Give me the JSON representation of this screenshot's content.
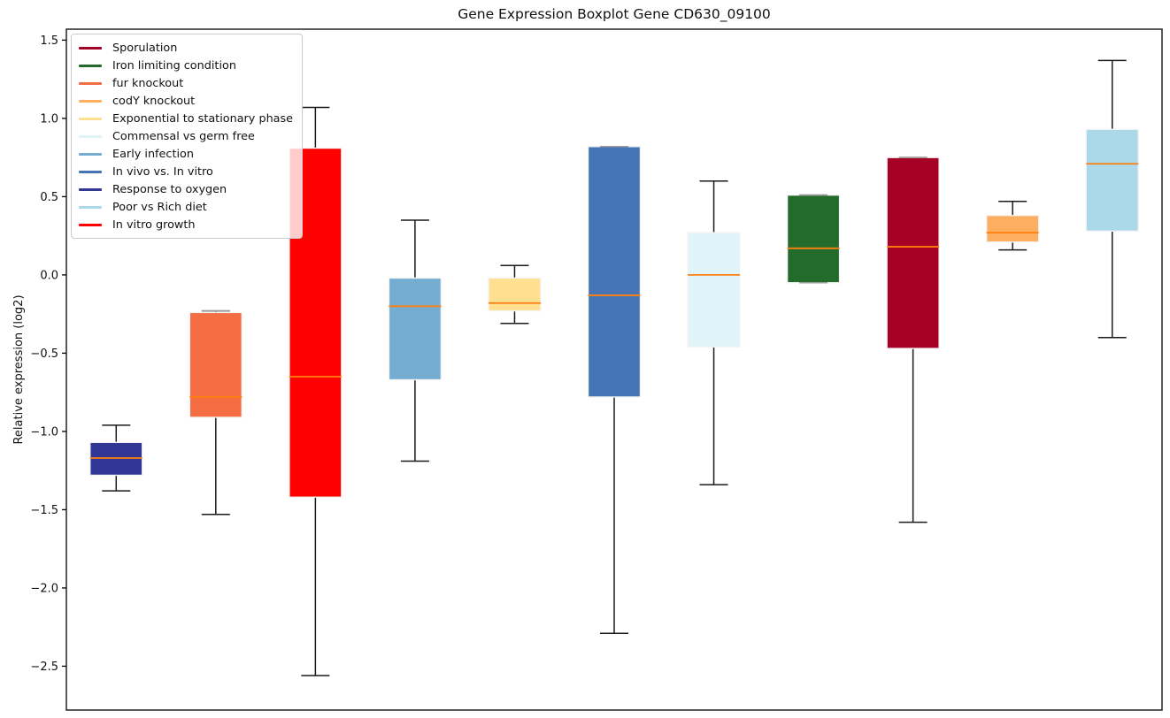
{
  "chart_data": {
    "type": "boxplot",
    "title": "Gene Expression Boxplot Gene CD630_09100",
    "ylabel": "Relative expression (log2)",
    "xlabel": "",
    "ylim": [
      -2.78,
      1.57
    ],
    "yticks": [
      1.5,
      1.0,
      0.5,
      0.0,
      -0.5,
      -1.0,
      -1.5,
      -2.0,
      -2.5
    ],
    "grid": false,
    "legend_position": "upper-left",
    "median_color": "#FF7F0E",
    "whisker_color": "#1a1a1a",
    "box_edge_color": "#f4f4f4",
    "series": [
      {
        "name": "Response to oxygen",
        "color": "#313695",
        "whisker_low": -1.38,
        "q1": -1.28,
        "median": -1.17,
        "q3": -1.07,
        "whisker_high": -0.96
      },
      {
        "name": "fur knockout",
        "color": "#F46D43",
        "whisker_low": -1.53,
        "q1": -0.91,
        "median": -0.78,
        "q3": -0.24,
        "whisker_high": -0.23
      },
      {
        "name": "In vitro growth",
        "color": "#FF0000",
        "whisker_low": -2.56,
        "q1": -1.42,
        "median": -0.65,
        "q3": 0.81,
        "whisker_high": 1.07
      },
      {
        "name": "Early infection",
        "color": "#74ADD1",
        "whisker_low": -1.19,
        "q1": -0.67,
        "median": -0.2,
        "q3": -0.02,
        "whisker_high": 0.35
      },
      {
        "name": "Exponential to stationary phase",
        "color": "#FEE090",
        "whisker_low": -0.31,
        "q1": -0.23,
        "median": -0.18,
        "q3": -0.02,
        "whisker_high": 0.06
      },
      {
        "name": "In vivo vs. In vitro",
        "color": "#4575B4",
        "whisker_low": -2.29,
        "q1": -0.78,
        "median": -0.13,
        "q3": 0.82,
        "whisker_high": 0.82
      },
      {
        "name": "Commensal vs germ free",
        "color": "#E0F3F8",
        "whisker_low": -1.34,
        "q1": -0.46,
        "median": 0.0,
        "q3": 0.27,
        "whisker_high": 0.6
      },
      {
        "name": "Iron limiting condition",
        "color": "#226B2B",
        "whisker_low": -0.05,
        "q1": -0.05,
        "median": 0.17,
        "q3": 0.51,
        "whisker_high": 0.51
      },
      {
        "name": "Sporulation",
        "color": "#A50026",
        "whisker_low": -1.58,
        "q1": -0.47,
        "median": 0.18,
        "q3": 0.75,
        "whisker_high": 0.75
      },
      {
        "name": "codY knockout",
        "color": "#FDAE61",
        "whisker_low": 0.16,
        "q1": 0.21,
        "median": 0.27,
        "q3": 0.38,
        "whisker_high": 0.47
      },
      {
        "name": "Poor vs Rich diet",
        "color": "#ABD9E9",
        "whisker_low": -0.4,
        "q1": 0.28,
        "median": 0.71,
        "q3": 0.93,
        "whisker_high": 1.37
      }
    ],
    "legend": [
      {
        "label": "Sporulation",
        "color": "#A50026"
      },
      {
        "label": "Iron limiting condition",
        "color": "#226B2B"
      },
      {
        "label": "fur knockout",
        "color": "#F46D43"
      },
      {
        "label": "codY knockout",
        "color": "#FDAE61"
      },
      {
        "label": "Exponential to stationary phase",
        "color": "#FEE090"
      },
      {
        "label": "Commensal vs germ free",
        "color": "#E0F3F8"
      },
      {
        "label": "Early infection",
        "color": "#74ADD1"
      },
      {
        "label": "In vivo vs. In vitro",
        "color": "#4575B4"
      },
      {
        "label": "Response to oxygen",
        "color": "#313695"
      },
      {
        "label": "Poor vs Rich diet",
        "color": "#ABD9E9"
      },
      {
        "label": "In vitro growth",
        "color": "#FF0000"
      }
    ]
  }
}
